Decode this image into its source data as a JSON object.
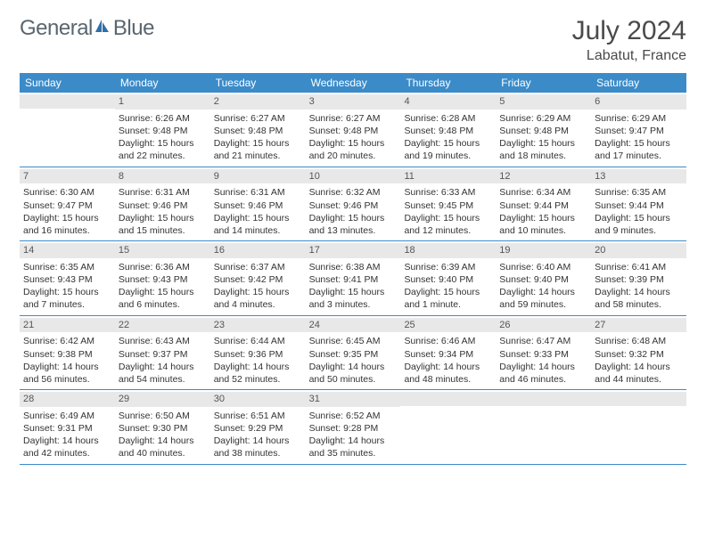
{
  "brand": {
    "general": "General",
    "blue": "Blue"
  },
  "title": "July 2024",
  "location": "Labatut, France",
  "header_bg": "#3b8bc9",
  "weekdays": [
    "Sunday",
    "Monday",
    "Tuesday",
    "Wednesday",
    "Thursday",
    "Friday",
    "Saturday"
  ],
  "weeks": [
    [
      {
        "num": "",
        "sunrise": "",
        "sunset": "",
        "daylight1": "",
        "daylight2": ""
      },
      {
        "num": "1",
        "sunrise": "Sunrise: 6:26 AM",
        "sunset": "Sunset: 9:48 PM",
        "daylight1": "Daylight: 15 hours",
        "daylight2": "and 22 minutes."
      },
      {
        "num": "2",
        "sunrise": "Sunrise: 6:27 AM",
        "sunset": "Sunset: 9:48 PM",
        "daylight1": "Daylight: 15 hours",
        "daylight2": "and 21 minutes."
      },
      {
        "num": "3",
        "sunrise": "Sunrise: 6:27 AM",
        "sunset": "Sunset: 9:48 PM",
        "daylight1": "Daylight: 15 hours",
        "daylight2": "and 20 minutes."
      },
      {
        "num": "4",
        "sunrise": "Sunrise: 6:28 AM",
        "sunset": "Sunset: 9:48 PM",
        "daylight1": "Daylight: 15 hours",
        "daylight2": "and 19 minutes."
      },
      {
        "num": "5",
        "sunrise": "Sunrise: 6:29 AM",
        "sunset": "Sunset: 9:48 PM",
        "daylight1": "Daylight: 15 hours",
        "daylight2": "and 18 minutes."
      },
      {
        "num": "6",
        "sunrise": "Sunrise: 6:29 AM",
        "sunset": "Sunset: 9:47 PM",
        "daylight1": "Daylight: 15 hours",
        "daylight2": "and 17 minutes."
      }
    ],
    [
      {
        "num": "7",
        "sunrise": "Sunrise: 6:30 AM",
        "sunset": "Sunset: 9:47 PM",
        "daylight1": "Daylight: 15 hours",
        "daylight2": "and 16 minutes."
      },
      {
        "num": "8",
        "sunrise": "Sunrise: 6:31 AM",
        "sunset": "Sunset: 9:46 PM",
        "daylight1": "Daylight: 15 hours",
        "daylight2": "and 15 minutes."
      },
      {
        "num": "9",
        "sunrise": "Sunrise: 6:31 AM",
        "sunset": "Sunset: 9:46 PM",
        "daylight1": "Daylight: 15 hours",
        "daylight2": "and 14 minutes."
      },
      {
        "num": "10",
        "sunrise": "Sunrise: 6:32 AM",
        "sunset": "Sunset: 9:46 PM",
        "daylight1": "Daylight: 15 hours",
        "daylight2": "and 13 minutes."
      },
      {
        "num": "11",
        "sunrise": "Sunrise: 6:33 AM",
        "sunset": "Sunset: 9:45 PM",
        "daylight1": "Daylight: 15 hours",
        "daylight2": "and 12 minutes."
      },
      {
        "num": "12",
        "sunrise": "Sunrise: 6:34 AM",
        "sunset": "Sunset: 9:44 PM",
        "daylight1": "Daylight: 15 hours",
        "daylight2": "and 10 minutes."
      },
      {
        "num": "13",
        "sunrise": "Sunrise: 6:35 AM",
        "sunset": "Sunset: 9:44 PM",
        "daylight1": "Daylight: 15 hours",
        "daylight2": "and 9 minutes."
      }
    ],
    [
      {
        "num": "14",
        "sunrise": "Sunrise: 6:35 AM",
        "sunset": "Sunset: 9:43 PM",
        "daylight1": "Daylight: 15 hours",
        "daylight2": "and 7 minutes."
      },
      {
        "num": "15",
        "sunrise": "Sunrise: 6:36 AM",
        "sunset": "Sunset: 9:43 PM",
        "daylight1": "Daylight: 15 hours",
        "daylight2": "and 6 minutes."
      },
      {
        "num": "16",
        "sunrise": "Sunrise: 6:37 AM",
        "sunset": "Sunset: 9:42 PM",
        "daylight1": "Daylight: 15 hours",
        "daylight2": "and 4 minutes."
      },
      {
        "num": "17",
        "sunrise": "Sunrise: 6:38 AM",
        "sunset": "Sunset: 9:41 PM",
        "daylight1": "Daylight: 15 hours",
        "daylight2": "and 3 minutes."
      },
      {
        "num": "18",
        "sunrise": "Sunrise: 6:39 AM",
        "sunset": "Sunset: 9:40 PM",
        "daylight1": "Daylight: 15 hours",
        "daylight2": "and 1 minute."
      },
      {
        "num": "19",
        "sunrise": "Sunrise: 6:40 AM",
        "sunset": "Sunset: 9:40 PM",
        "daylight1": "Daylight: 14 hours",
        "daylight2": "and 59 minutes."
      },
      {
        "num": "20",
        "sunrise": "Sunrise: 6:41 AM",
        "sunset": "Sunset: 9:39 PM",
        "daylight1": "Daylight: 14 hours",
        "daylight2": "and 58 minutes."
      }
    ],
    [
      {
        "num": "21",
        "sunrise": "Sunrise: 6:42 AM",
        "sunset": "Sunset: 9:38 PM",
        "daylight1": "Daylight: 14 hours",
        "daylight2": "and 56 minutes."
      },
      {
        "num": "22",
        "sunrise": "Sunrise: 6:43 AM",
        "sunset": "Sunset: 9:37 PM",
        "daylight1": "Daylight: 14 hours",
        "daylight2": "and 54 minutes."
      },
      {
        "num": "23",
        "sunrise": "Sunrise: 6:44 AM",
        "sunset": "Sunset: 9:36 PM",
        "daylight1": "Daylight: 14 hours",
        "daylight2": "and 52 minutes."
      },
      {
        "num": "24",
        "sunrise": "Sunrise: 6:45 AM",
        "sunset": "Sunset: 9:35 PM",
        "daylight1": "Daylight: 14 hours",
        "daylight2": "and 50 minutes."
      },
      {
        "num": "25",
        "sunrise": "Sunrise: 6:46 AM",
        "sunset": "Sunset: 9:34 PM",
        "daylight1": "Daylight: 14 hours",
        "daylight2": "and 48 minutes."
      },
      {
        "num": "26",
        "sunrise": "Sunrise: 6:47 AM",
        "sunset": "Sunset: 9:33 PM",
        "daylight1": "Daylight: 14 hours",
        "daylight2": "and 46 minutes."
      },
      {
        "num": "27",
        "sunrise": "Sunrise: 6:48 AM",
        "sunset": "Sunset: 9:32 PM",
        "daylight1": "Daylight: 14 hours",
        "daylight2": "and 44 minutes."
      }
    ],
    [
      {
        "num": "28",
        "sunrise": "Sunrise: 6:49 AM",
        "sunset": "Sunset: 9:31 PM",
        "daylight1": "Daylight: 14 hours",
        "daylight2": "and 42 minutes."
      },
      {
        "num": "29",
        "sunrise": "Sunrise: 6:50 AM",
        "sunset": "Sunset: 9:30 PM",
        "daylight1": "Daylight: 14 hours",
        "daylight2": "and 40 minutes."
      },
      {
        "num": "30",
        "sunrise": "Sunrise: 6:51 AM",
        "sunset": "Sunset: 9:29 PM",
        "daylight1": "Daylight: 14 hours",
        "daylight2": "and 38 minutes."
      },
      {
        "num": "31",
        "sunrise": "Sunrise: 6:52 AM",
        "sunset": "Sunset: 9:28 PM",
        "daylight1": "Daylight: 14 hours",
        "daylight2": "and 35 minutes."
      },
      {
        "num": "",
        "sunrise": "",
        "sunset": "",
        "daylight1": "",
        "daylight2": ""
      },
      {
        "num": "",
        "sunrise": "",
        "sunset": "",
        "daylight1": "",
        "daylight2": ""
      },
      {
        "num": "",
        "sunrise": "",
        "sunset": "",
        "daylight1": "",
        "daylight2": ""
      }
    ]
  ]
}
